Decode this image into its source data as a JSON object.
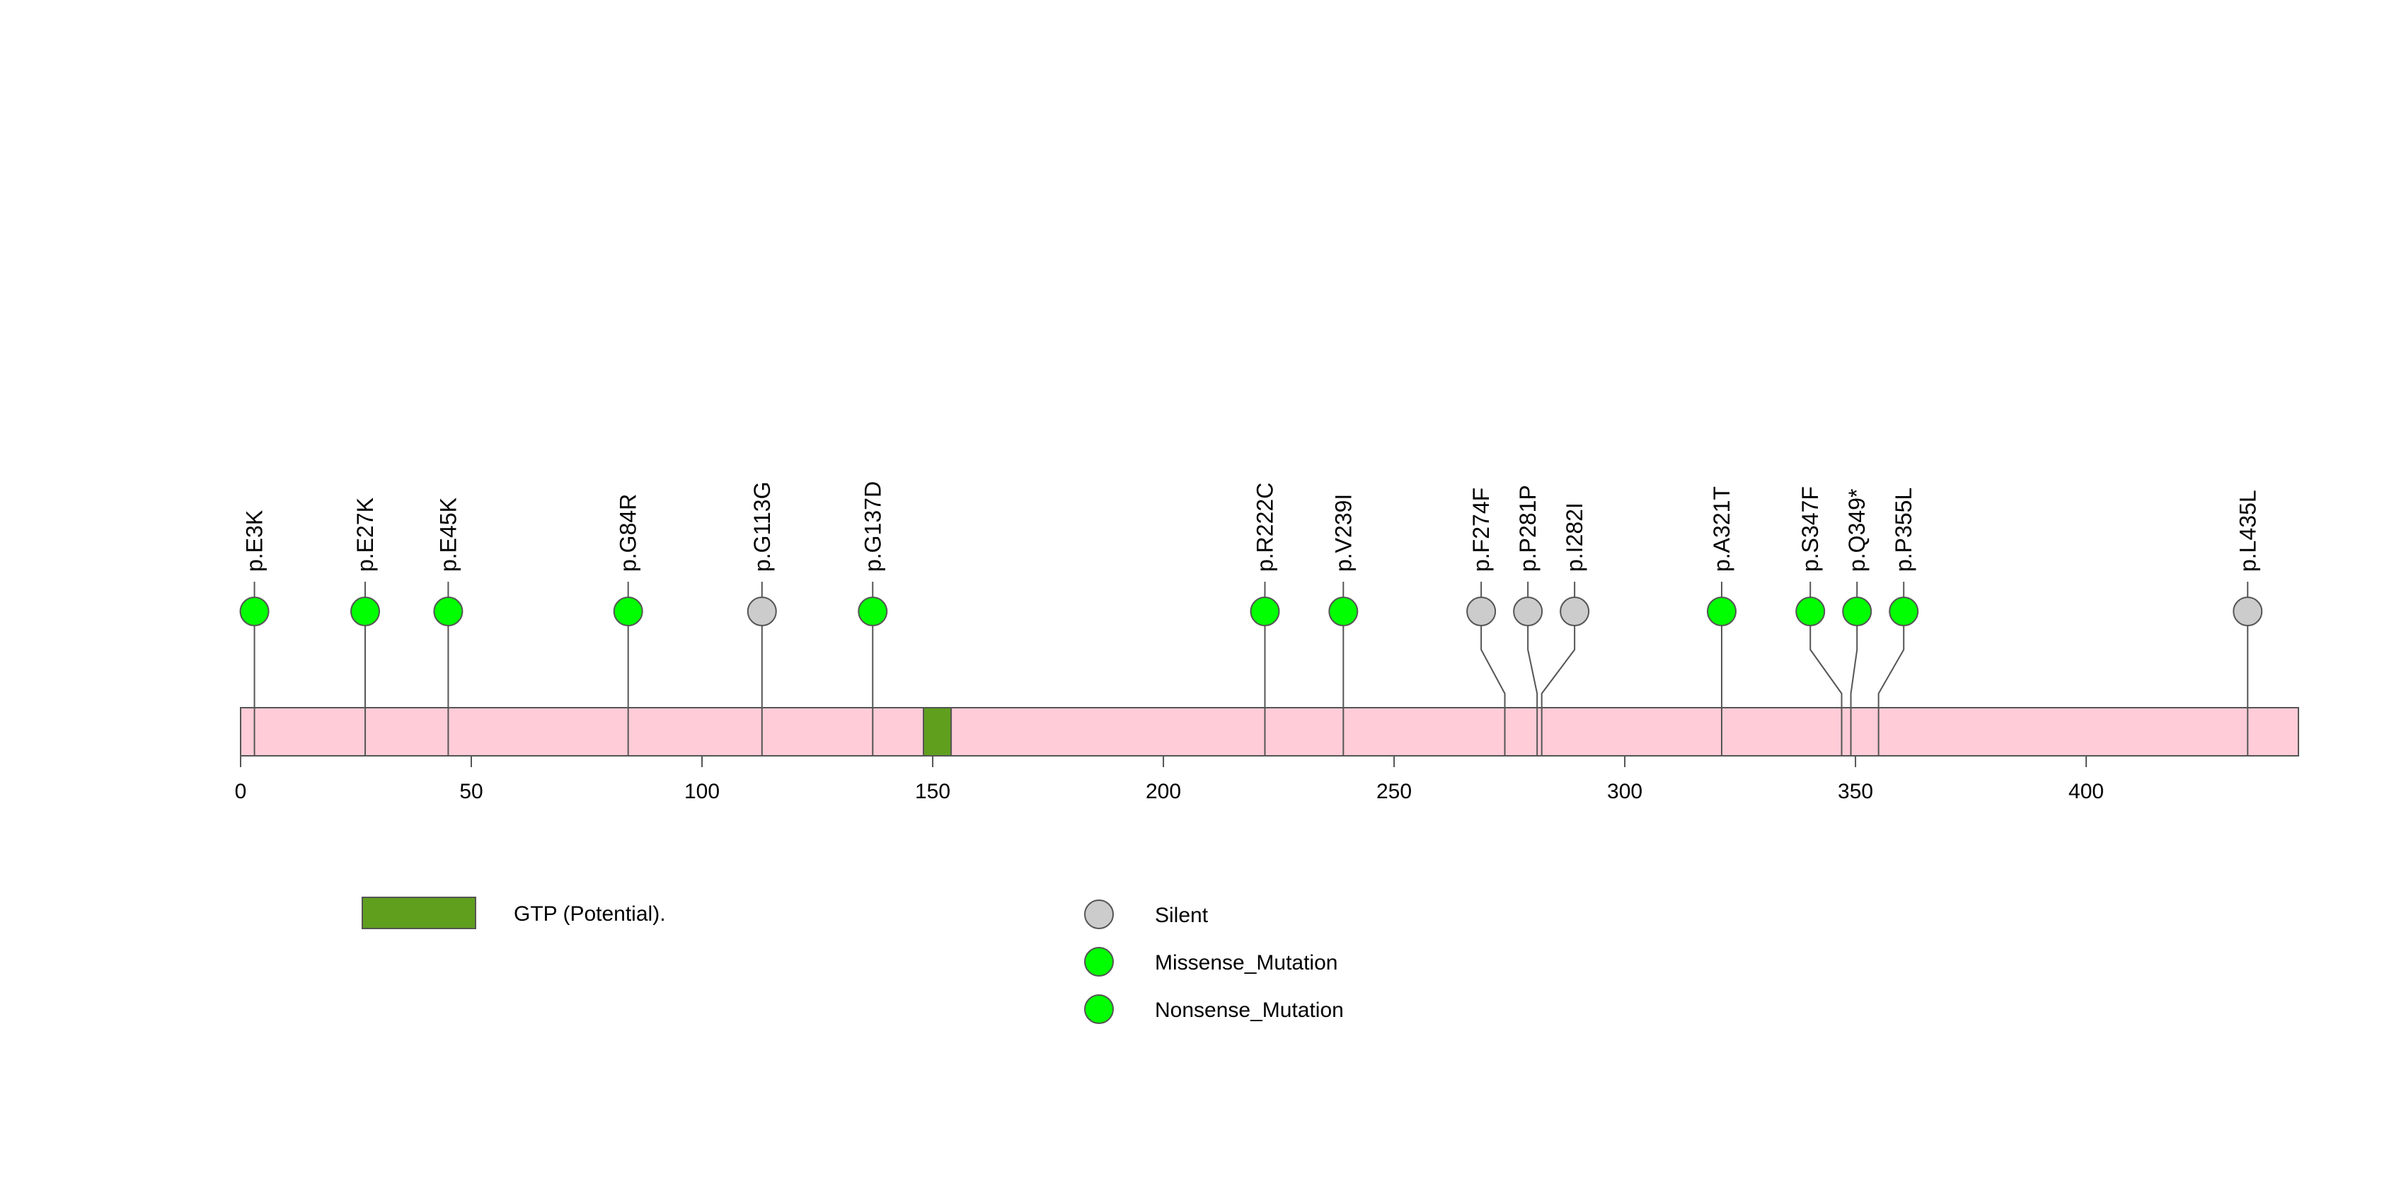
{
  "chart_data": {
    "type": "lollipop",
    "title": "",
    "protein_length": 446,
    "xlim": [
      0,
      446
    ],
    "x_ticks": [
      0,
      50,
      100,
      150,
      200,
      250,
      300,
      350,
      400
    ],
    "domains": [
      {
        "name": "GTP (Potential).",
        "start": 148,
        "end": 154,
        "color": "#5f9f1d"
      }
    ],
    "mutations": [
      {
        "label": "p.E3K",
        "position": 3,
        "type": "Missense_Mutation"
      },
      {
        "label": "p.E27K",
        "position": 27,
        "type": "Missense_Mutation"
      },
      {
        "label": "p.E45K",
        "position": 45,
        "type": "Missense_Mutation"
      },
      {
        "label": "p.G84R",
        "position": 84,
        "type": "Missense_Mutation"
      },
      {
        "label": "p.G113G",
        "position": 113,
        "type": "Silent"
      },
      {
        "label": "p.G137D",
        "position": 137,
        "type": "Missense_Mutation"
      },
      {
        "label": "p.R222C",
        "position": 222,
        "type": "Missense_Mutation"
      },
      {
        "label": "p.V239I",
        "position": 239,
        "type": "Missense_Mutation"
      },
      {
        "label": "p.F274F",
        "position": 274,
        "type": "Silent"
      },
      {
        "label": "p.P281P",
        "position": 281,
        "type": "Silent"
      },
      {
        "label": "p.I282I",
        "position": 282,
        "type": "Silent"
      },
      {
        "label": "p.A321T",
        "position": 321,
        "type": "Missense_Mutation"
      },
      {
        "label": "p.S347F",
        "position": 347,
        "type": "Missense_Mutation"
      },
      {
        "label": "p.Q349*",
        "position": 349,
        "type": "Nonsense_Mutation"
      },
      {
        "label": "p.P355L",
        "position": 355,
        "type": "Missense_Mutation"
      },
      {
        "label": "p.L435L",
        "position": 435,
        "type": "Silent"
      }
    ],
    "legend": {
      "domains": [
        {
          "label": "GTP (Potential).",
          "color": "#5f9f1d"
        }
      ],
      "mutation_types": [
        {
          "label": "Silent",
          "color": "#cccccc"
        },
        {
          "label": "Missense_Mutation",
          "color": "#00ff00"
        },
        {
          "label": "Nonsense_Mutation",
          "color": "#00ff00"
        }
      ]
    },
    "colors": {
      "protein_bar": "#ffccd8",
      "outline": "#555555",
      "Silent": "#cccccc",
      "Missense_Mutation": "#00ff00",
      "Nonsense_Mutation": "#00ff00"
    }
  }
}
